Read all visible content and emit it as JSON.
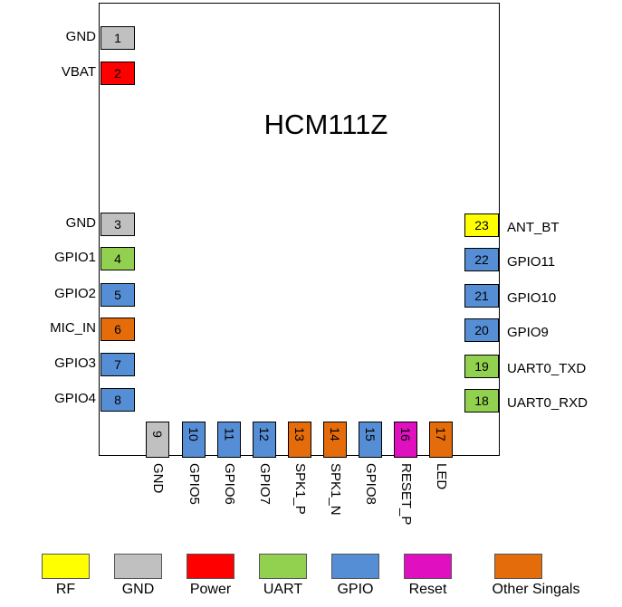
{
  "chip_name": "HCM111Z",
  "colors": {
    "rf": "#ffff00",
    "gnd": "#c0c0c0",
    "power": "#ff0000",
    "uart": "#92d050",
    "gpio": "#558ed5",
    "reset": "#e010c0",
    "other": "#e46c0a"
  },
  "pins": [
    {
      "num": "1",
      "name": "GND",
      "type": "gnd"
    },
    {
      "num": "2",
      "name": "VBAT",
      "type": "power"
    },
    {
      "num": "3",
      "name": "GND",
      "type": "gnd"
    },
    {
      "num": "4",
      "name": "GPIO1",
      "type": "uart"
    },
    {
      "num": "5",
      "name": "GPIO2",
      "type": "gpio"
    },
    {
      "num": "6",
      "name": "MIC_IN",
      "type": "other"
    },
    {
      "num": "7",
      "name": "GPIO3",
      "type": "gpio"
    },
    {
      "num": "8",
      "name": "GPIO4",
      "type": "gpio"
    },
    {
      "num": "9",
      "name": "GND",
      "type": "gnd"
    },
    {
      "num": "10",
      "name": "GPIO5",
      "type": "gpio"
    },
    {
      "num": "11",
      "name": "GPIO6",
      "type": "gpio"
    },
    {
      "num": "12",
      "name": "GPIO7",
      "type": "gpio"
    },
    {
      "num": "13",
      "name": "SPK1_P",
      "type": "other"
    },
    {
      "num": "14",
      "name": "SPK1_N",
      "type": "other"
    },
    {
      "num": "15",
      "name": "GPIO8",
      "type": "gpio"
    },
    {
      "num": "16",
      "name": "RESET_P",
      "type": "reset"
    },
    {
      "num": "17",
      "name": "LED",
      "type": "other"
    },
    {
      "num": "18",
      "name": "UART0_RXD",
      "type": "uart"
    },
    {
      "num": "19",
      "name": "UART0_TXD",
      "type": "uart"
    },
    {
      "num": "20",
      "name": "GPIO9",
      "type": "gpio"
    },
    {
      "num": "21",
      "name": "GPIO10",
      "type": "gpio"
    },
    {
      "num": "22",
      "name": "GPIO11",
      "type": "gpio"
    },
    {
      "num": "23",
      "name": "ANT_BT",
      "type": "rf"
    }
  ],
  "legend": [
    {
      "label": "RF",
      "type": "rf"
    },
    {
      "label": "GND",
      "type": "gnd"
    },
    {
      "label": "Power",
      "type": "power"
    },
    {
      "label": "UART",
      "type": "uart"
    },
    {
      "label": "GPIO",
      "type": "gpio"
    },
    {
      "label": "Reset",
      "type": "reset"
    },
    {
      "label": "Other Singals",
      "type": "other"
    }
  ]
}
